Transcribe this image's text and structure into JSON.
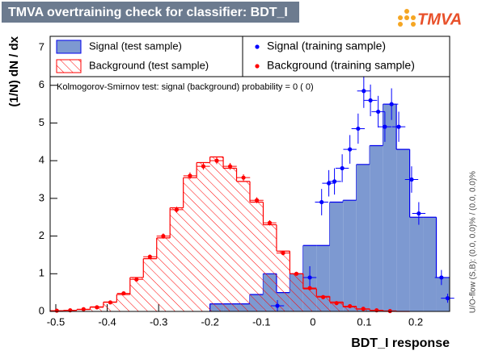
{
  "chart_data": {
    "type": "histogram",
    "title": "TMVA overtraining check for classifier: BDT_I",
    "logo": "TMVA",
    "xlabel": "BDT_I response",
    "ylabel": "(1/N) dN / dx",
    "annotation": "Kolmogorov-Smirnov test: signal (background) probability =   0 (    0)",
    "side_note": "U/O-flow (S,B): (0.0, 0.0)% / (0.0, 0.0)%",
    "xlim": [
      -0.511,
      0.266
    ],
    "ylim": [
      0,
      7.3
    ],
    "xticks": [
      -0.5,
      -0.4,
      -0.3,
      -0.2,
      -0.1,
      0,
      0.1,
      0.2
    ],
    "yticks": [
      0,
      1,
      2,
      3,
      4,
      5,
      6,
      7
    ],
    "bins": [
      -0.511,
      -0.4851,
      -0.4592,
      -0.4333,
      -0.4074,
      -0.3815,
      -0.3556,
      -0.3297,
      -0.3038,
      -0.2779,
      -0.252,
      -0.2261,
      -0.2002,
      -0.1743,
      -0.1484,
      -0.1225,
      -0.0966,
      -0.0707,
      -0.0448,
      -0.0189,
      0.007,
      0.0329,
      0.0588,
      0.0847,
      0.1106,
      0.1365,
      0.1624,
      0.1883,
      0.2142,
      0.2401,
      0.266
    ],
    "series": [
      {
        "name": "Signal (test sample)",
        "style": "filled",
        "color": "#7d99d1",
        "line_color": "#0000ee",
        "values": [
          0,
          0,
          0,
          0,
          0,
          0,
          0,
          0,
          0,
          0,
          0,
          0,
          0.2,
          0.2,
          0.2,
          0.45,
          1.0,
          0.5,
          1.0,
          1.75,
          1.75,
          2.9,
          2.95,
          3.9,
          4.4,
          5.5,
          4.3,
          2.5,
          2.5,
          0.9
        ]
      },
      {
        "name": "Background (test sample)",
        "style": "hatched",
        "color": "#ff0000",
        "values": [
          0.02,
          0.03,
          0.05,
          0.12,
          0.25,
          0.45,
          0.9,
          1.4,
          1.95,
          2.75,
          3.55,
          3.95,
          4.1,
          3.8,
          3.45,
          2.9,
          2.3,
          1.6,
          1.0,
          0.6,
          0.4,
          0.25,
          0.12,
          0.06,
          0.03,
          0.01,
          0,
          0,
          0,
          0
        ]
      },
      {
        "name": "Signal (training sample)",
        "style": "points",
        "color": "#0000ff",
        "x_error": 0.0129,
        "x": [
          -0.069,
          -0.006,
          0.017,
          0.031,
          0.042,
          0.057,
          0.072,
          0.088,
          0.099,
          0.112,
          0.127,
          0.14,
          0.153,
          0.167,
          0.192,
          0.206,
          0.25,
          0.262
        ],
        "values": [
          0.15,
          0.9,
          2.9,
          3.4,
          3.45,
          3.8,
          4.3,
          4.85,
          5.85,
          5.6,
          5.3,
          4.9,
          5.5,
          4.9,
          3.5,
          2.6,
          0.9,
          0.35
        ],
        "errors": [
          0.15,
          0.3,
          0.35,
          0.35,
          0.35,
          0.37,
          0.38,
          0.4,
          0.45,
          0.42,
          0.42,
          0.4,
          0.42,
          0.4,
          0.35,
          0.3,
          0.2,
          0.12
        ]
      },
      {
        "name": "Background (training sample)",
        "style": "points",
        "color": "#ff0000",
        "x_error": 0.0129,
        "x": [
          -0.498,
          -0.472,
          -0.446,
          -0.42,
          -0.394,
          -0.368,
          -0.343,
          -0.317,
          -0.291,
          -0.265,
          -0.239,
          -0.213,
          -0.187,
          -0.161,
          -0.135,
          -0.109,
          -0.084,
          -0.058,
          -0.032,
          -0.006,
          0.02,
          0.046,
          0.072,
          0.098,
          0.124,
          0.15
        ],
        "values": [
          0.02,
          0.03,
          0.06,
          0.11,
          0.24,
          0.48,
          0.85,
          1.45,
          2.0,
          2.7,
          3.6,
          3.85,
          4.0,
          3.85,
          3.55,
          2.95,
          2.35,
          1.55,
          1.0,
          0.62,
          0.38,
          0.22,
          0.14,
          0.07,
          0.03,
          0.01
        ],
        "errors": [
          0.01,
          0.01,
          0.02,
          0.02,
          0.03,
          0.04,
          0.05,
          0.06,
          0.07,
          0.08,
          0.09,
          0.09,
          0.09,
          0.09,
          0.09,
          0.08,
          0.07,
          0.06,
          0.05,
          0.04,
          0.03,
          0.03,
          0.02,
          0.02,
          0.01,
          0.01
        ]
      }
    ]
  }
}
